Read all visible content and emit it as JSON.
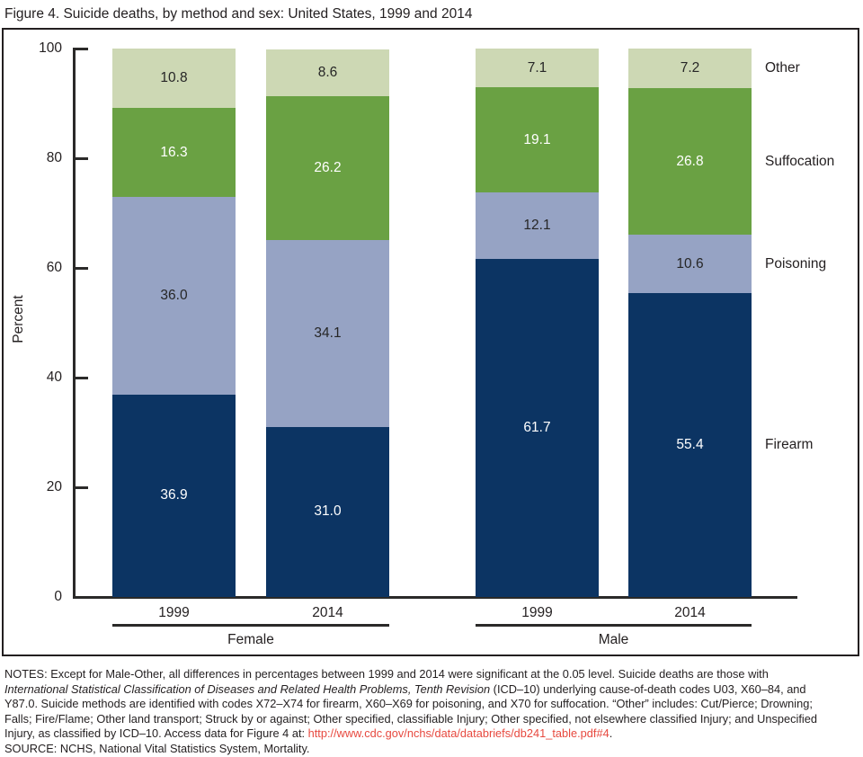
{
  "chart_data": {
    "type": "bar",
    "stacked": true,
    "title": "Figure 4. Suicide deaths, by method and sex: United States, 1999 and 2014",
    "xlabel": "",
    "ylabel": "Percent",
    "ylim": [
      0,
      100
    ],
    "yticks": [
      0,
      20,
      40,
      60,
      80,
      100
    ],
    "grid": false,
    "legend_position": "right-of-bars",
    "categories": [
      "Female 1999",
      "Female 2014",
      "Male 1999",
      "Male 2014"
    ],
    "bar_year_labels": [
      "1999",
      "2014",
      "1999",
      "2014"
    ],
    "groups": [
      {
        "label": "Female",
        "bar_indices": [
          0,
          1
        ]
      },
      {
        "label": "Male",
        "bar_indices": [
          2,
          3
        ]
      }
    ],
    "series": [
      {
        "name": "Firearm",
        "color": "#0c3463",
        "label_color": "#ffffff",
        "values": [
          36.9,
          31.0,
          61.7,
          55.4
        ],
        "labels": [
          "36.9",
          "31.0",
          "61.7",
          "55.4"
        ]
      },
      {
        "name": "Poisoning",
        "color": "#96a3c4",
        "label_color": "#262626",
        "values": [
          36.0,
          34.1,
          12.1,
          10.6
        ],
        "labels": [
          "36.0",
          "34.1",
          "12.1",
          "10.6"
        ]
      },
      {
        "name": "Suffocation",
        "color": "#6aa143",
        "label_color": "#ffffff",
        "values": [
          16.3,
          26.2,
          19.1,
          26.8
        ],
        "labels": [
          "16.3",
          "26.2",
          "19.1",
          "26.8"
        ]
      },
      {
        "name": "Other",
        "color": "#cdd8b4",
        "label_color": "#262626",
        "values": [
          10.8,
          8.6,
          7.1,
          7.2
        ],
        "labels": [
          "10.8",
          "8.6",
          "7.1",
          "7.2"
        ]
      }
    ]
  },
  "colors": {
    "text": "#231f20",
    "axis": "#2b2a29",
    "link_red": "#e7493f"
  },
  "notes_lines": [
    {
      "text": "NOTES: Except for Male-Other, all differences in percentages between 1999 and 2014 were significant at the 0.05 level. Suicide deaths are those with"
    },
    {
      "italic": "International Statistical Classification of Diseases and Related Health Problems, Tenth Revision",
      "text": " (ICD–10) underlying cause-of-death codes U03, X60–84, and"
    },
    {
      "text": "Y87.0. Suicide methods are identified with codes X72–X74 for firearm, X60–X69 for poisoning, and X70 for suffocation. “Other” includes: Cut/Pierce; Drowning;"
    },
    {
      "text": "Falls; Fire/Flame; Other land transport; Struck by or against; Other specified, classifiable Injury; Other specified, not elsewhere classified Injury; and Unspecified"
    },
    {
      "text": "Injury, as classified by ICD–10. Access data for Figure 4 at: ",
      "link": "http://www.cdc.gov/nchs/data/databriefs/db241_table.pdf#4",
      "suffix": "."
    },
    {
      "text": "SOURCE: NCHS, National Vital Statistics System, Mortality."
    }
  ]
}
